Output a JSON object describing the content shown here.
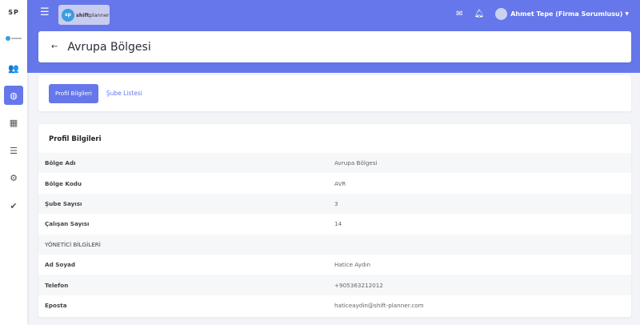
{
  "sidebar": {
    "brand": "SP",
    "items": [
      {
        "icon": "users-icon",
        "glyph": "👥"
      },
      {
        "icon": "globe-icon",
        "glyph": "◍",
        "active": true
      },
      {
        "icon": "calendar-icon",
        "glyph": "▦"
      },
      {
        "icon": "list-icon",
        "glyph": "☰"
      },
      {
        "icon": "gear-icon",
        "glyph": "⚙"
      },
      {
        "icon": "clipboard-check-icon",
        "glyph": "✔"
      }
    ]
  },
  "topbar": {
    "logo_badge": "sp",
    "logo_bold": "shift",
    "logo_rest": "planner",
    "user": "Ahmet Tepe (Firma Sorumlusu)"
  },
  "page": {
    "title": "Avrupa Bölgesi"
  },
  "tabs": {
    "active": "Profil Bilgileri",
    "other": "Şube Listesi"
  },
  "profile": {
    "heading": "Profil Bilgileri",
    "rows": [
      {
        "k": "Bölge Adı",
        "v": "Avrupa Bölgesi"
      },
      {
        "k": "Bölge Kodu",
        "v": "AVR"
      },
      {
        "k": "Şube Sayısı",
        "v": "3"
      },
      {
        "k": "Çalışan Sayısı",
        "v": "14"
      },
      {
        "k": "YÖNETİCİ BİLGİLERİ",
        "v": ""
      },
      {
        "k": "Ad Soyad",
        "v": "Hatice Aydın"
      },
      {
        "k": "Telefon",
        "v": "+905363212012"
      },
      {
        "k": "Eposta",
        "v": "haticeaydin@shift-planner.com"
      }
    ]
  },
  "colors": {
    "primary": "#6577ea"
  }
}
